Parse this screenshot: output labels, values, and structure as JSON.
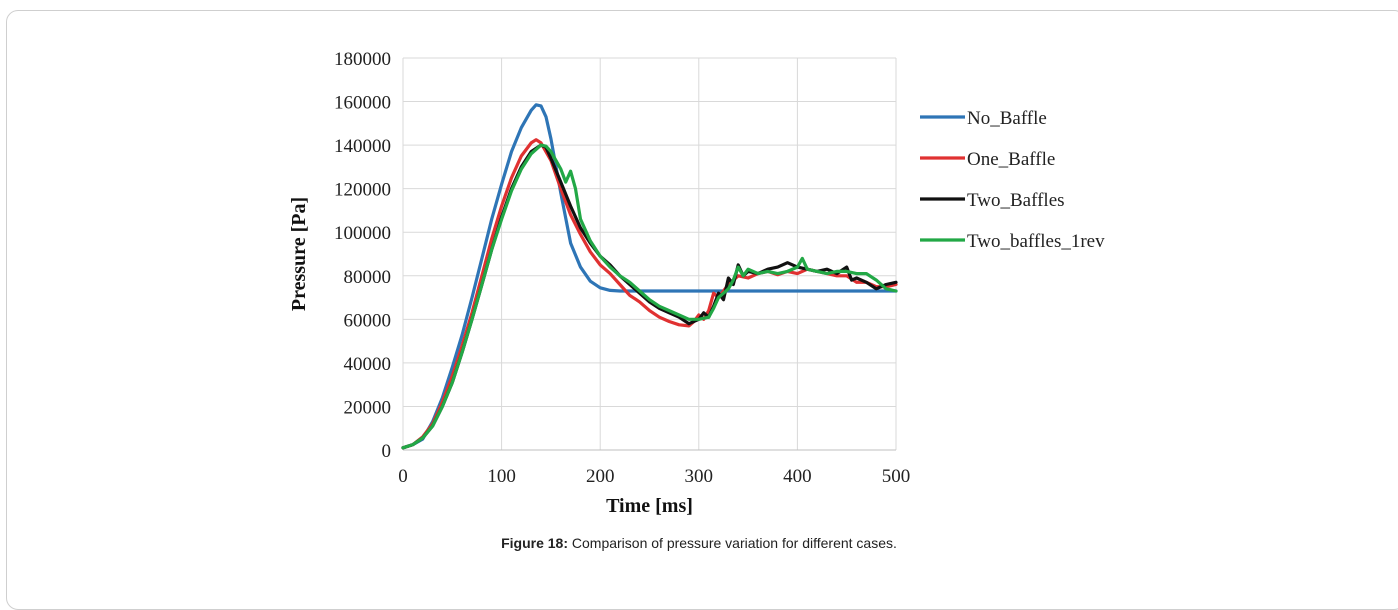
{
  "caption": {
    "label": "Figure 18:",
    "text": "Comparison of pressure variation for different cases."
  },
  "chart_data": {
    "type": "line",
    "xlabel": "Time [ms]",
    "ylabel": "Pressure [Pa]",
    "xlim": [
      0,
      500
    ],
    "ylim": [
      0,
      180000
    ],
    "xticks": [
      0,
      100,
      200,
      300,
      400,
      500
    ],
    "yticks": [
      0,
      20000,
      40000,
      60000,
      80000,
      100000,
      120000,
      140000,
      160000,
      180000
    ],
    "grid": true,
    "legend_position": "right",
    "series": [
      {
        "name": "No_Baffle",
        "color": "#2e75b6",
        "x": [
          0,
          10,
          20,
          30,
          40,
          50,
          60,
          70,
          80,
          90,
          100,
          110,
          120,
          130,
          135,
          140,
          145,
          150,
          160,
          170,
          180,
          190,
          200,
          210,
          220,
          240,
          260,
          280,
          300,
          320,
          340,
          360,
          380,
          400,
          420,
          440,
          460,
          480,
          500
        ],
        "values": [
          1000,
          2500,
          5000,
          13000,
          24000,
          38000,
          53000,
          70000,
          88000,
          106000,
          122000,
          137000,
          148000,
          156000,
          158500,
          158000,
          153000,
          143000,
          118000,
          95000,
          84000,
          77500,
          74500,
          73300,
          73000,
          73000,
          73000,
          73000,
          73000,
          73000,
          73000,
          73000,
          73000,
          73000,
          73000,
          73000,
          73000,
          73000,
          73000
        ]
      },
      {
        "name": "One_Baffle",
        "color": "#e03131",
        "x": [
          0,
          10,
          20,
          30,
          40,
          50,
          60,
          70,
          80,
          90,
          100,
          110,
          120,
          130,
          135,
          140,
          150,
          160,
          170,
          180,
          190,
          200,
          210,
          220,
          230,
          240,
          250,
          260,
          270,
          280,
          290,
          295,
          300,
          305,
          310,
          315,
          320,
          330,
          340,
          350,
          360,
          370,
          380,
          390,
          400,
          410,
          420,
          430,
          440,
          450,
          460,
          470,
          480,
          490,
          500
        ],
        "values": [
          1000,
          2500,
          6000,
          12000,
          22000,
          34000,
          48000,
          63000,
          80000,
          97000,
          112000,
          125000,
          135000,
          141000,
          142500,
          141000,
          133000,
          120000,
          108000,
          99000,
          91000,
          85000,
          81000,
          76000,
          71000,
          68000,
          64000,
          61000,
          59000,
          57500,
          57000,
          59000,
          62000,
          60000,
          64000,
          72000,
          70000,
          76000,
          80000,
          79000,
          81000,
          82000,
          80500,
          82000,
          81000,
          83000,
          82000,
          81000,
          80000,
          80000,
          77000,
          77000,
          75000,
          75000,
          76000
        ]
      },
      {
        "name": "Two_Baffles",
        "color": "#111111",
        "x": [
          0,
          10,
          20,
          30,
          40,
          50,
          60,
          70,
          80,
          90,
          100,
          110,
          120,
          130,
          140,
          145,
          150,
          160,
          170,
          180,
          190,
          200,
          210,
          220,
          230,
          240,
          250,
          260,
          270,
          280,
          290,
          300,
          305,
          310,
          315,
          320,
          325,
          330,
          335,
          340,
          345,
          350,
          360,
          370,
          380,
          390,
          400,
          410,
          420,
          430,
          440,
          450,
          455,
          460,
          470,
          480,
          490,
          500
        ],
        "values": [
          1000,
          2500,
          5500,
          11000,
          20000,
          31000,
          45000,
          60000,
          76000,
          92000,
          107000,
          120000,
          130000,
          137000,
          140000,
          139000,
          134000,
          123000,
          112000,
          102000,
          95000,
          89000,
          85000,
          80000,
          76000,
          72000,
          68000,
          65000,
          63000,
          61000,
          58000,
          60000,
          63000,
          61000,
          66000,
          72000,
          69000,
          79000,
          76000,
          85000,
          80000,
          82000,
          81000,
          83000,
          84000,
          86000,
          84000,
          83000,
          82000,
          83000,
          81000,
          84000,
          78000,
          79000,
          77000,
          74000,
          76000,
          77000
        ]
      },
      {
        "name": "Two_baffles_1rev",
        "color": "#22a846",
        "x": [
          0,
          10,
          20,
          30,
          40,
          50,
          60,
          70,
          80,
          90,
          100,
          110,
          120,
          130,
          140,
          145,
          150,
          160,
          165,
          170,
          175,
          180,
          190,
          200,
          210,
          220,
          230,
          240,
          250,
          260,
          270,
          280,
          290,
          300,
          310,
          315,
          320,
          325,
          330,
          335,
          340,
          345,
          350,
          360,
          370,
          380,
          390,
          400,
          405,
          410,
          420,
          430,
          440,
          450,
          460,
          470,
          480,
          490,
          500
        ],
        "values": [
          1000,
          2500,
          5500,
          11000,
          20000,
          31000,
          45000,
          60000,
          76000,
          92000,
          106000,
          119000,
          129000,
          136000,
          140000,
          139500,
          137000,
          129000,
          123000,
          128000,
          120000,
          106000,
          96000,
          89000,
          84000,
          80000,
          77000,
          73000,
          69000,
          66000,
          64000,
          62000,
          60000,
          60000,
          61000,
          65000,
          70000,
          72000,
          74000,
          78000,
          84000,
          80000,
          83000,
          81000,
          82000,
          81000,
          82000,
          84000,
          88000,
          83000,
          82000,
          81000,
          82000,
          82000,
          81000,
          81000,
          78000,
          74000,
          73000
        ]
      }
    ]
  }
}
